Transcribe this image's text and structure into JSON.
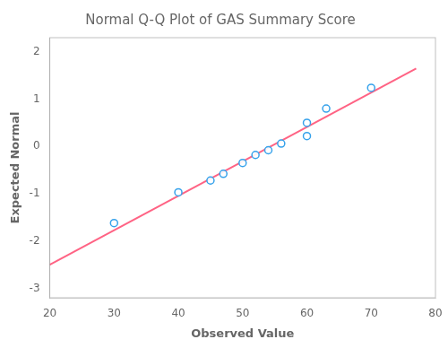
{
  "chart_data": {
    "type": "scatter",
    "title": "Normal Q-Q Plot of GAS Summary Score",
    "xlabel": "Observed Value",
    "ylabel": "Expected Normal",
    "series": [
      {
        "type": "scatter",
        "marker": "circle",
        "x": [
          30,
          40,
          45,
          47,
          50,
          52,
          54,
          56,
          60,
          60,
          63,
          70
        ],
        "values": [
          -1.62,
          -0.97,
          -0.72,
          -0.58,
          -0.35,
          -0.18,
          -0.08,
          0.06,
          0.5,
          0.22,
          0.8,
          1.24
        ]
      },
      {
        "type": "line",
        "line_style": "solid",
        "x": [
          20,
          77
        ],
        "values": [
          -2.5,
          1.65
        ]
      }
    ],
    "xlim": [
      20,
      80
    ],
    "ylim": [
      -3.2,
      2.3
    ],
    "xticks": [
      20,
      30,
      40,
      50,
      60,
      70,
      80
    ],
    "yticks": [
      -3,
      -2,
      -1,
      0,
      1,
      2
    ],
    "grid": false
  }
}
